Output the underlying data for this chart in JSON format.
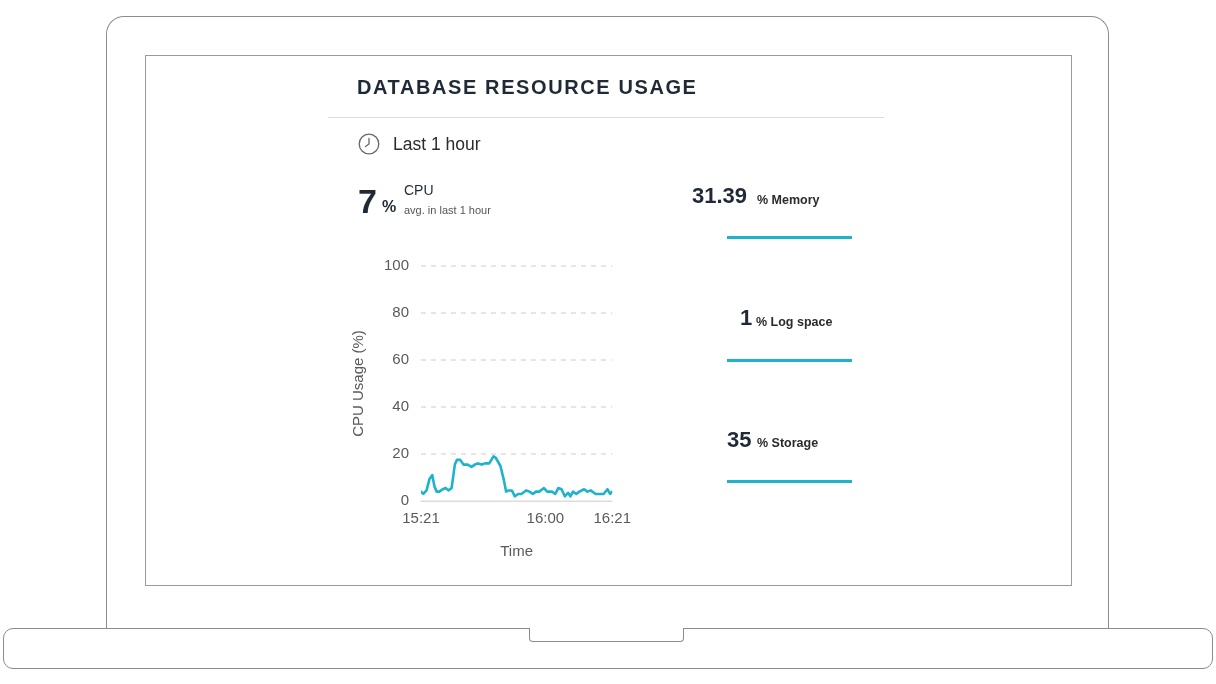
{
  "chart_data": {
    "type": "line",
    "title": "DATABASE RESOURCE USAGE",
    "subtitle": "Last 1 hour",
    "xlabel": "Time",
    "ylabel": "CPU Usage (%)",
    "x": [
      15.35,
      15.362,
      15.379,
      15.395,
      15.409,
      15.421,
      15.432,
      15.446,
      15.463,
      15.48,
      15.493,
      15.51,
      15.527,
      15.538,
      15.555,
      15.572,
      15.594,
      15.614,
      15.632,
      15.648,
      15.668,
      15.685,
      15.707,
      15.729,
      15.74,
      15.765,
      15.783,
      15.795,
      15.808,
      15.825,
      15.841,
      15.858,
      15.875,
      15.9,
      15.917,
      15.935,
      15.951,
      15.968,
      15.993,
      16.01,
      16.035,
      16.052,
      16.068,
      16.085,
      16.102,
      16.119,
      16.131,
      16.145,
      16.162,
      16.178,
      16.203,
      16.22,
      16.237,
      16.263,
      16.288,
      16.305,
      16.325,
      16.339,
      16.35
    ],
    "series": [
      {
        "color": "#1fb3cb",
        "values": [
          4,
          3,
          4.5,
          9.5,
          11,
          6,
          4,
          4,
          5,
          5.5,
          4.5,
          5.5,
          15.5,
          17.5,
          17.5,
          15.5,
          15.5,
          14.5,
          15.5,
          16,
          15.5,
          16,
          16,
          19,
          18.5,
          15,
          9,
          4,
          4.5,
          4.5,
          2,
          3,
          3,
          4.5,
          4,
          3,
          4,
          4,
          5.5,
          4,
          4,
          3,
          5.5,
          5,
          2,
          3.5,
          2,
          4,
          3,
          4,
          5,
          4,
          4.5,
          3,
          3,
          3,
          5,
          3,
          4
        ]
      }
    ],
    "xlim": [
      15.35,
      16.35
    ],
    "xticks": [
      {
        "value": 15.35,
        "label": "15:21"
      },
      {
        "value": 16,
        "label": "16:00"
      },
      {
        "value": 16.35,
        "label": "16:21"
      }
    ],
    "ylim": [
      0,
      100
    ],
    "yticks": [
      0,
      20,
      40,
      60,
      80,
      100
    ],
    "grid": "y",
    "legend": false,
    "marker": "none",
    "line_style": "solid",
    "annotations": [
      "7",
      "%",
      "CPU",
      "avg. in last 1 hour",
      "31.39",
      "% Memory",
      "1",
      "% Log space",
      "35",
      "% Storage"
    ]
  }
}
